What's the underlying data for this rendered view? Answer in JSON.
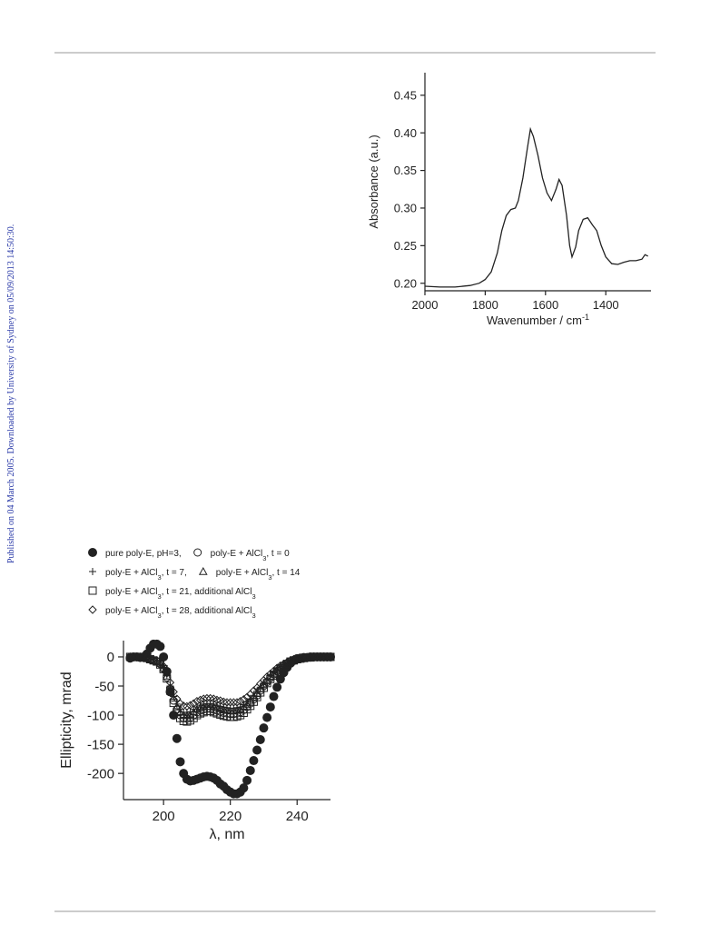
{
  "side_note": "Published on 04 March 2005. Downloaded by University of Sydney on 05/09/2013 14:50:30.",
  "chart_data": [
    {
      "type": "line",
      "ylabel": "Absorbance (a.u.)",
      "xlabel": "Wavenumber / cm",
      "xlabel_superscript": "-1",
      "xlim": [
        2000,
        1250
      ],
      "xticks": [
        2000,
        1800,
        1600,
        1400
      ],
      "ylim": [
        0.19,
        0.48
      ],
      "yticks": [
        {
          "value": 0.2,
          "label": "0.20"
        },
        {
          "value": 0.25,
          "label": "0.25"
        },
        {
          "value": 0.3,
          "label": "0.30"
        },
        {
          "value": 0.35,
          "label": "0.35"
        },
        {
          "value": 0.4,
          "label": "0.40"
        },
        {
          "value": 0.45,
          "label": "0.45"
        }
      ],
      "color": "#222222",
      "x": [
        2000,
        1950,
        1900,
        1850,
        1820,
        1800,
        1780,
        1760,
        1745,
        1730,
        1715,
        1700,
        1690,
        1675,
        1660,
        1650,
        1640,
        1625,
        1610,
        1595,
        1580,
        1565,
        1555,
        1545,
        1530,
        1520,
        1512,
        1500,
        1490,
        1475,
        1460,
        1445,
        1430,
        1415,
        1400,
        1380,
        1360,
        1340,
        1320,
        1300,
        1280,
        1270,
        1260
      ],
      "values": [
        0.196,
        0.195,
        0.195,
        0.197,
        0.2,
        0.205,
        0.215,
        0.24,
        0.27,
        0.29,
        0.298,
        0.3,
        0.31,
        0.34,
        0.38,
        0.405,
        0.395,
        0.37,
        0.34,
        0.32,
        0.31,
        0.325,
        0.338,
        0.33,
        0.29,
        0.25,
        0.235,
        0.248,
        0.27,
        0.285,
        0.287,
        0.278,
        0.27,
        0.25,
        0.235,
        0.226,
        0.225,
        0.228,
        0.23,
        0.23,
        0.232,
        0.238,
        0.236
      ]
    },
    {
      "type": "scatter",
      "ylabel": "Ellipticity, mrad",
      "xlabel": "λ, nm",
      "xlim": [
        188,
        250
      ],
      "xticks": [
        200,
        220,
        240
      ],
      "ylim": [
        -245,
        28
      ],
      "yticks": [
        0,
        -50,
        -100,
        -150,
        -200
      ],
      "x": [
        190,
        191,
        192,
        193,
        194,
        195,
        196,
        197,
        198,
        199,
        200,
        201,
        202,
        203,
        204,
        205,
        206,
        207,
        208,
        209,
        210,
        211,
        212,
        213,
        214,
        215,
        216,
        217,
        218,
        219,
        220,
        221,
        222,
        223,
        224,
        225,
        226,
        227,
        228,
        229,
        230,
        231,
        232,
        233,
        234,
        235,
        236,
        237,
        238,
        239,
        240,
        241,
        242,
        243,
        244,
        245,
        246,
        247,
        248,
        249,
        250
      ],
      "series": [
        {
          "name": "pure poly-E, pH=3,",
          "marker": "filled-circle",
          "color": "#222222",
          "values": [
            -2,
            0,
            0,
            -1,
            0,
            5,
            15,
            22,
            22,
            18,
            0,
            -25,
            -60,
            -100,
            -140,
            -180,
            -200,
            -210,
            -213,
            -212,
            -210,
            -208,
            -206,
            -205,
            -206,
            -208,
            -212,
            -218,
            -222,
            -228,
            -232,
            -235,
            -235,
            -232,
            -225,
            -212,
            -195,
            -178,
            -160,
            -142,
            -122,
            -104,
            -86,
            -68,
            -52,
            -38,
            -27,
            -18,
            -11,
            -6,
            -3,
            -2,
            -1,
            -1,
            0,
            0,
            0,
            0,
            0,
            0,
            0
          ]
        },
        {
          "name": "poly-E + AlCl3, t = 0",
          "marker": "circle",
          "color": "#222222",
          "values": [
            0,
            0,
            0,
            0,
            -1,
            -2,
            -4,
            -6,
            -8,
            -12,
            -20,
            -35,
            -55,
            -75,
            -90,
            -100,
            -105,
            -106,
            -104,
            -100,
            -95,
            -92,
            -90,
            -89,
            -89,
            -90,
            -92,
            -94,
            -96,
            -97,
            -98,
            -98,
            -97,
            -95,
            -91,
            -86,
            -80,
            -73,
            -66,
            -58,
            -50,
            -43,
            -36,
            -30,
            -24,
            -19,
            -15,
            -11,
            -8,
            -6,
            -4,
            -3,
            -2,
            -1,
            -1,
            0,
            0,
            0,
            0,
            0,
            0
          ]
        },
        {
          "name": "poly-E + AlCl3, t = 7,",
          "marker": "plus",
          "color": "#222222",
          "values": [
            0,
            0,
            0,
            0,
            -1,
            -2,
            -4,
            -5,
            -7,
            -11,
            -18,
            -32,
            -50,
            -68,
            -81,
            -90,
            -95,
            -95,
            -94,
            -90,
            -86,
            -83,
            -81,
            -80,
            -80,
            -81,
            -83,
            -85,
            -86,
            -87,
            -88,
            -88,
            -87,
            -86,
            -82,
            -77,
            -72,
            -66,
            -59,
            -52,
            -45,
            -39,
            -32,
            -27,
            -22,
            -17,
            -14,
            -10,
            -7,
            -5,
            -4,
            -3,
            -2,
            -1,
            -1,
            0,
            0,
            0,
            0,
            0,
            0
          ]
        },
        {
          "name": "poly-E + AlCl3, t = 14",
          "marker": "triangle",
          "color": "#222222",
          "values": [
            0,
            0,
            0,
            0,
            -1,
            -2,
            -4,
            -6,
            -8,
            -11,
            -19,
            -33,
            -52,
            -71,
            -86,
            -95,
            -100,
            -101,
            -99,
            -95,
            -90,
            -87,
            -86,
            -85,
            -85,
            -86,
            -87,
            -89,
            -91,
            -92,
            -93,
            -93,
            -92,
            -90,
            -86,
            -82,
            -76,
            -69,
            -63,
            -55,
            -48,
            -41,
            -34,
            -29,
            -23,
            -18,
            -14,
            -10,
            -8,
            -6,
            -4,
            -3,
            -2,
            -1,
            -1,
            0,
            0,
            0,
            0,
            0,
            0
          ]
        },
        {
          "name": "poly-E + AlCl3, t = 21, additional AlCl3",
          "marker": "square",
          "color": "#222222",
          "values": [
            0,
            0,
            0,
            0,
            -1,
            -2,
            -4,
            -6,
            -8,
            -13,
            -21,
            -37,
            -58,
            -79,
            -95,
            -105,
            -110,
            -111,
            -109,
            -105,
            -100,
            -97,
            -95,
            -93,
            -93,
            -95,
            -97,
            -99,
            -101,
            -102,
            -103,
            -103,
            -102,
            -100,
            -96,
            -90,
            -84,
            -77,
            -69,
            -61,
            -53,
            -45,
            -38,
            -32,
            -25,
            -20,
            -16,
            -12,
            -8,
            -6,
            -4,
            -3,
            -2,
            -1,
            -1,
            0,
            0,
            0,
            0,
            0,
            0
          ]
        },
        {
          "name": "poly-E + AlCl3, t = 28, additional AlCl3",
          "marker": "diamond",
          "color": "#222222",
          "values": [
            0,
            0,
            0,
            0,
            -1,
            -2,
            -3,
            -5,
            -6,
            -10,
            -16,
            -28,
            -44,
            -60,
            -72,
            -80,
            -84,
            -85,
            -83,
            -80,
            -76,
            -74,
            -72,
            -71,
            -71,
            -72,
            -74,
            -75,
            -77,
            -78,
            -78,
            -78,
            -78,
            -76,
            -73,
            -69,
            -64,
            -58,
            -53,
            -46,
            -40,
            -34,
            -29,
            -24,
            -19,
            -15,
            -12,
            -9,
            -6,
            -5,
            -3,
            -2,
            -2,
            -1,
            -1,
            0,
            0,
            0,
            0,
            0,
            0
          ]
        }
      ]
    }
  ]
}
